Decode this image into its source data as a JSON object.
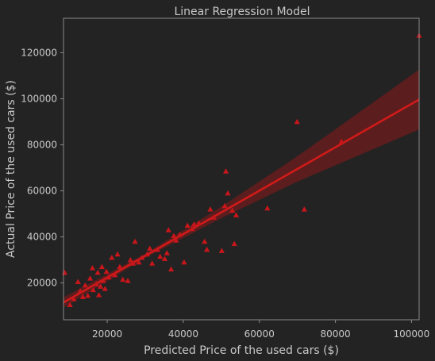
{
  "chart_data": {
    "type": "scatter",
    "title": "Linear Regression Model",
    "xlabel": "Predicted Price of the used cars ($)",
    "ylabel": "Actual Price of the used cars ($)",
    "xlim": [
      8500,
      102000
    ],
    "ylim": [
      4000,
      135000
    ],
    "xticks": [
      20000,
      40000,
      60000,
      80000,
      100000
    ],
    "yticks": [
      20000,
      40000,
      60000,
      80000,
      100000,
      120000
    ],
    "grid": false,
    "legend": "none",
    "marker": "triangle",
    "colors": {
      "background": "#232323",
      "frame": "#8a8a8a",
      "points": "#c8161b",
      "fit_line": "#d11a1a",
      "band": "#8a1a1a"
    },
    "fit": {
      "slope": 0.943,
      "intercept": 3500,
      "x_range": [
        8500,
        102000
      ],
      "band_halfwidth_at_x": [
        [
          8500,
          2200
        ],
        [
          30000,
          900
        ],
        [
          50000,
          2500
        ],
        [
          70000,
          5500
        ],
        [
          102000,
          13000
        ]
      ]
    },
    "points": [
      [
        8800,
        24500
      ],
      [
        10200,
        10500
      ],
      [
        11200,
        13000
      ],
      [
        12300,
        20500
      ],
      [
        12900,
        16500
      ],
      [
        13600,
        14000
      ],
      [
        14200,
        19000
      ],
      [
        14900,
        14500
      ],
      [
        15500,
        22000
      ],
      [
        16100,
        26500
      ],
      [
        16300,
        17000
      ],
      [
        17100,
        19500
      ],
      [
        17500,
        24500
      ],
      [
        17800,
        14800
      ],
      [
        18200,
        18500
      ],
      [
        18600,
        27000
      ],
      [
        19000,
        21000
      ],
      [
        19400,
        17500
      ],
      [
        19800,
        25000
      ],
      [
        20400,
        22500
      ],
      [
        21200,
        31000
      ],
      [
        22000,
        23500
      ],
      [
        22700,
        32500
      ],
      [
        23300,
        27000
      ],
      [
        24100,
        21500
      ],
      [
        25400,
        21000
      ],
      [
        26100,
        30000
      ],
      [
        26800,
        28500
      ],
      [
        27300,
        38000
      ],
      [
        28300,
        29000
      ],
      [
        29100,
        31000
      ],
      [
        30500,
        32500
      ],
      [
        31200,
        35000
      ],
      [
        31800,
        28500
      ],
      [
        33200,
        34500
      ],
      [
        33900,
        31500
      ],
      [
        35100,
        30500
      ],
      [
        35700,
        33000
      ],
      [
        36100,
        43000
      ],
      [
        36800,
        26000
      ],
      [
        37500,
        40500
      ],
      [
        38100,
        38500
      ],
      [
        39100,
        41000
      ],
      [
        40200,
        29000
      ],
      [
        41100,
        45000
      ],
      [
        42300,
        43500
      ],
      [
        42800,
        45500
      ],
      [
        44100,
        46000
      ],
      [
        45600,
        38000
      ],
      [
        46200,
        34500
      ],
      [
        47100,
        52000
      ],
      [
        48000,
        48500
      ],
      [
        50100,
        34000
      ],
      [
        50900,
        53500
      ],
      [
        51200,
        68500
      ],
      [
        51700,
        59000
      ],
      [
        52900,
        51500
      ],
      [
        53400,
        37000
      ],
      [
        53900,
        49500
      ],
      [
        62100,
        52500
      ],
      [
        69900,
        90000
      ],
      [
        71800,
        52000
      ],
      [
        81600,
        81500
      ],
      [
        102000,
        127500
      ]
    ]
  }
}
